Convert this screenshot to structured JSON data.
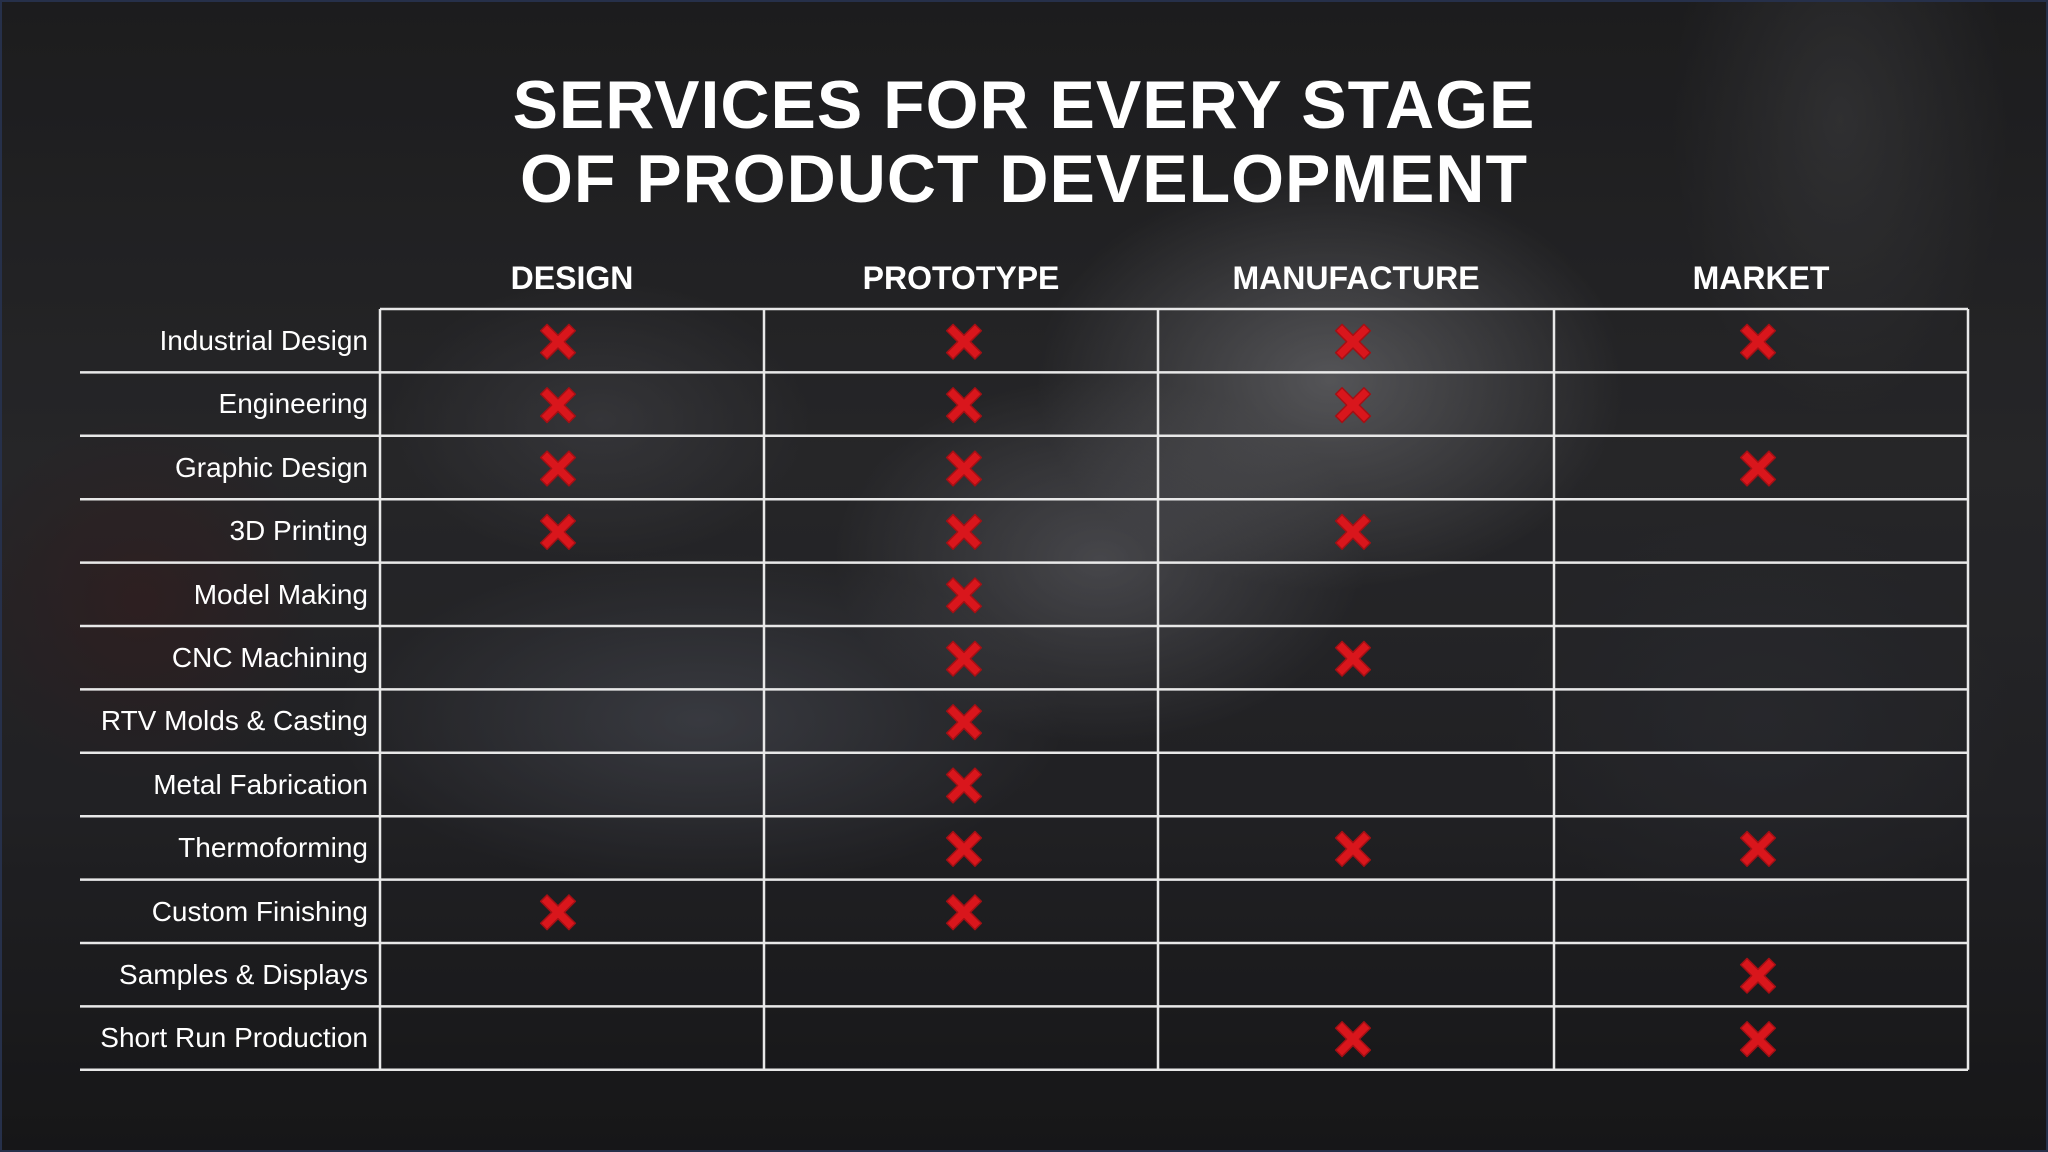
{
  "title_lines": [
    "SERVICES FOR EVERY STAGE",
    "OF PRODUCT DEVELOPMENT"
  ],
  "columns": [
    "DESIGN",
    "PROTOTYPE",
    "MANUFACTURE",
    "MARKET"
  ],
  "rows": [
    {
      "label": "Industrial Design",
      "marks": [
        true,
        true,
        true,
        true
      ]
    },
    {
      "label": "Engineering",
      "marks": [
        true,
        true,
        true,
        false
      ]
    },
    {
      "label": "Graphic Design",
      "marks": [
        true,
        true,
        false,
        true
      ]
    },
    {
      "label": "3D Printing",
      "marks": [
        true,
        true,
        true,
        false
      ]
    },
    {
      "label": "Model Making",
      "marks": [
        false,
        true,
        false,
        false
      ]
    },
    {
      "label": "CNC Machining",
      "marks": [
        false,
        true,
        true,
        false
      ]
    },
    {
      "label": "RTV Molds & Casting",
      "marks": [
        false,
        true,
        false,
        false
      ]
    },
    {
      "label": "Metal Fabrication",
      "marks": [
        false,
        true,
        false,
        false
      ]
    },
    {
      "label": "Thermoforming",
      "marks": [
        false,
        true,
        true,
        true
      ]
    },
    {
      "label": "Custom Finishing",
      "marks": [
        true,
        true,
        false,
        false
      ]
    },
    {
      "label": "Samples & Displays",
      "marks": [
        false,
        false,
        false,
        true
      ]
    },
    {
      "label": "Short Run Production",
      "marks": [
        false,
        false,
        true,
        true
      ]
    }
  ],
  "colors": {
    "mark": "#d9161c",
    "mark_stroke": "#a50f14",
    "grid_line": "#e8e8e8",
    "text": "#ffffff"
  },
  "icons": {
    "mark": "x-mark-icon"
  }
}
